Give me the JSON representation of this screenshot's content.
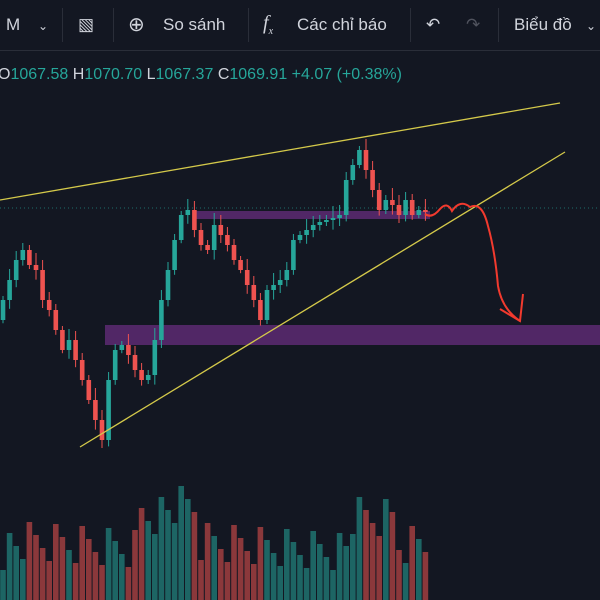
{
  "toolbar": {
    "interval": "M",
    "compare": "So sánh",
    "indicators": "Các chỉ báo",
    "chart_menu": "Biểu đồ"
  },
  "legend": {
    "open_label": "O",
    "open": "1067.58",
    "high_label": "H",
    "high": "1070.70",
    "low_label": "L",
    "low": "1067.37",
    "close_label": "C",
    "close": "1069.91",
    "change": "+4.07 (+0.38%)"
  }
}
